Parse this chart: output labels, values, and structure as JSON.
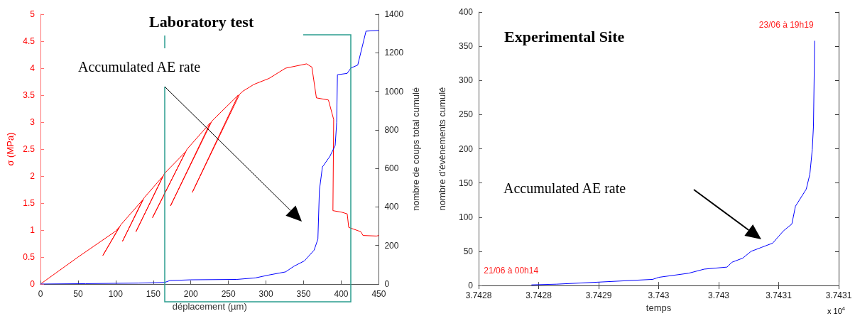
{
  "chart_data": [
    {
      "type": "line",
      "title": "Laboratory test",
      "xlabel": "déplacement (µm)",
      "ylabel": "σ (MPa)",
      "y2label": "nombre de coups total cumulé",
      "xlim": [
        0,
        450
      ],
      "xticks": [
        0,
        50,
        100,
        150,
        200,
        250,
        300,
        350,
        400,
        450
      ],
      "ylim": [
        0,
        5
      ],
      "yticks": [
        0,
        0.5,
        1,
        1.5,
        2,
        2.5,
        3,
        3.5,
        4,
        4.5,
        5
      ],
      "y2lim": [
        0,
        1400
      ],
      "y2ticks": [
        0,
        200,
        400,
        600,
        800,
        1000,
        1200,
        1400
      ],
      "grid": false,
      "marker": "none",
      "annotations": [
        "Accumulated AE rate"
      ],
      "series": [
        {
          "color": "#ff0000",
          "x": [
            0,
            50,
            100,
            105,
            83,
            107,
            136,
            109,
            138,
            163,
            127,
            165,
            193,
            149,
            195,
            226,
            173,
            228,
            263,
            202,
            265,
            270,
            284,
            304,
            326,
            354,
            361,
            367,
            383,
            390,
            389,
            401,
            408,
            410,
            426,
            429,
            447,
            450
          ],
          "values": [
            0,
            0.5,
            0.98,
            1.06,
            0.53,
            1.1,
            1.56,
            0.79,
            1.6,
            2.0,
            0.97,
            2.05,
            2.45,
            1.23,
            2.5,
            2.99,
            1.45,
            3.02,
            3.5,
            1.7,
            3.52,
            3.58,
            3.7,
            3.81,
            4.0,
            4.08,
            4.02,
            3.45,
            3.41,
            3.05,
            1.36,
            1.33,
            1.3,
            1.05,
            0.97,
            0.9,
            0.89,
            0.9
          ]
        },
        {
          "color": "#0000ff",
          "axis": "y2",
          "x": [
            0,
            60,
            130,
            165,
            172,
            200,
            261,
            286,
            304,
            326,
            337,
            351,
            364,
            369,
            371,
            375,
            385,
            392,
            394,
            395,
            408,
            413,
            422,
            433,
            450
          ],
          "values": [
            0,
            2,
            5,
            8,
            18,
            22,
            24,
            32,
            47,
            63,
            92,
            120,
            176,
            233,
            487,
            607,
            663,
            719,
            839,
            1086,
            1093,
            1121,
            1136,
            1312,
            1316
          ]
        }
      ]
    },
    {
      "type": "line",
      "title": "Experimental Site",
      "xlabel": "temps",
      "ylabel": "nombre d'évènements cumulé",
      "xlim": [
        3.7428,
        3.7431
      ],
      "xticks": [
        {
          "value": 3.7428,
          "label": "3.7428"
        },
        {
          "value": 3.74285,
          "label": "3.7428"
        },
        {
          "value": 3.7429,
          "label": "3.7429"
        },
        {
          "value": 3.74295,
          "label": "3.743"
        },
        {
          "value": 3.743,
          "label": "3.743"
        },
        {
          "value": 3.74305,
          "label": "3.7431"
        },
        {
          "value": 3.7431,
          "label": "3.7431"
        }
      ],
      "ylim": [
        0,
        400
      ],
      "yticks": [
        0,
        50,
        100,
        150,
        200,
        250,
        300,
        350,
        400
      ],
      "grid": false,
      "marker": "none",
      "annotations": [
        "Accumulated AE rate",
        "x 10$^{4}$",
        {
          "text": "21/06 à 00h14",
          "x": 3.742844,
          "y": 1
        },
        {
          "text": "23/06 à 19h19",
          "x": 3.74308,
          "y": 358
        }
      ],
      "series": [
        {
          "color": "#0000ff",
          "x": [
            3.742844,
            3.742865,
            3.7429,
            3.742945,
            3.74295,
            3.742975,
            3.742988,
            3.743007,
            3.743011,
            3.74302,
            3.743027,
            3.743036,
            3.743045,
            3.743054,
            3.743061,
            3.743064,
            3.743073,
            3.743076,
            3.743078,
            3.743079,
            3.74308
          ],
          "values": [
            1,
            2,
            5,
            9,
            12,
            18,
            24,
            27,
            34,
            40,
            50,
            56,
            62,
            80,
            90,
            116,
            141,
            163,
            199,
            233,
            358
          ]
        }
      ]
    }
  ]
}
